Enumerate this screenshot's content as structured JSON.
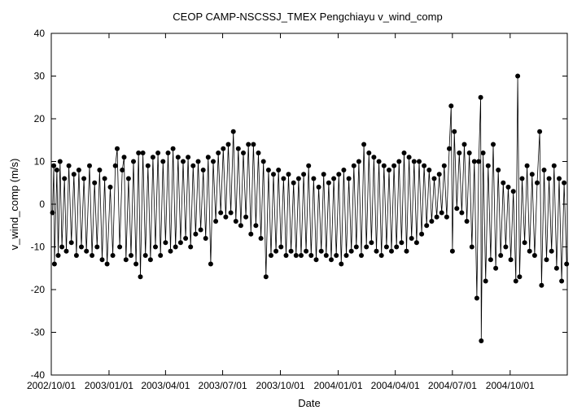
{
  "chart_data": {
    "type": "scatter",
    "title": "CEOP CAMP-NSCSSJ_TMEX Pengchiayu  v_wind_comp",
    "xlabel": "Date",
    "ylabel": "v_wind_comp (m/s)",
    "xlim": [
      "2002-10-01",
      "2004-12-31"
    ],
    "ylim": [
      -40,
      40
    ],
    "y_ticks": [
      -40,
      -30,
      -20,
      -10,
      0,
      10,
      20,
      30,
      40
    ],
    "x_ticks": [
      {
        "date": "2002-10-01",
        "label": "2002/10/01"
      },
      {
        "date": "2003-01-01",
        "label": "2003/01/01"
      },
      {
        "date": "2003-04-01",
        "label": "2003/04/01"
      },
      {
        "date": "2003-07-01",
        "label": "2003/07/01"
      },
      {
        "date": "2003-10-01",
        "label": "2003/10/01"
      },
      {
        "date": "2004-01-01",
        "label": "2004/01/01"
      },
      {
        "date": "2004-04-01",
        "label": "2004/04/01"
      },
      {
        "date": "2004-07-01",
        "label": "2004/07/01"
      },
      {
        "date": "2004-10-01",
        "label": "2004/10/01"
      }
    ],
    "grid": false,
    "series": [
      {
        "color": "#000000",
        "points": [
          [
            "2002-10-03",
            -2
          ],
          [
            "2002-10-05",
            9
          ],
          [
            "2002-10-06",
            -14
          ],
          [
            "2002-10-10",
            8
          ],
          [
            "2002-10-12",
            -12
          ],
          [
            "2002-10-15",
            10
          ],
          [
            "2002-10-18",
            -10
          ],
          [
            "2002-10-22",
            6
          ],
          [
            "2002-10-25",
            -11
          ],
          [
            "2002-10-29",
            9
          ],
          [
            "2002-11-02",
            -9
          ],
          [
            "2002-11-06",
            7
          ],
          [
            "2002-11-10",
            -12
          ],
          [
            "2002-11-14",
            8
          ],
          [
            "2002-11-18",
            -10
          ],
          [
            "2002-11-22",
            6
          ],
          [
            "2002-11-26",
            -11
          ],
          [
            "2002-12-01",
            9
          ],
          [
            "2002-12-05",
            -12
          ],
          [
            "2002-12-09",
            5
          ],
          [
            "2002-12-13",
            -10
          ],
          [
            "2002-12-17",
            8
          ],
          [
            "2002-12-21",
            -13
          ],
          [
            "2002-12-25",
            6
          ],
          [
            "2002-12-29",
            -14
          ],
          [
            "2003-01-03",
            4
          ],
          [
            "2003-01-07",
            -12
          ],
          [
            "2003-01-11",
            9
          ],
          [
            "2003-01-14",
            13
          ],
          [
            "2003-01-18",
            -10
          ],
          [
            "2003-01-22",
            8
          ],
          [
            "2003-01-25",
            11
          ],
          [
            "2003-01-28",
            -13
          ],
          [
            "2003-02-01",
            6
          ],
          [
            "2003-02-05",
            -12
          ],
          [
            "2003-02-09",
            10
          ],
          [
            "2003-02-13",
            -14
          ],
          [
            "2003-02-17",
            12
          ],
          [
            "2003-02-20",
            -17
          ],
          [
            "2003-02-24",
            12
          ],
          [
            "2003-02-28",
            -12
          ],
          [
            "2003-03-04",
            9
          ],
          [
            "2003-03-08",
            -13
          ],
          [
            "2003-03-12",
            11
          ],
          [
            "2003-03-16",
            -10
          ],
          [
            "2003-03-20",
            12
          ],
          [
            "2003-03-24",
            -12
          ],
          [
            "2003-03-28",
            10
          ],
          [
            "2003-04-01",
            -9
          ],
          [
            "2003-04-05",
            12
          ],
          [
            "2003-04-09",
            -11
          ],
          [
            "2003-04-13",
            13
          ],
          [
            "2003-04-17",
            -10
          ],
          [
            "2003-04-21",
            11
          ],
          [
            "2003-04-25",
            -9
          ],
          [
            "2003-04-29",
            10
          ],
          [
            "2003-05-03",
            -8
          ],
          [
            "2003-05-07",
            11
          ],
          [
            "2003-05-11",
            -10
          ],
          [
            "2003-05-15",
            9
          ],
          [
            "2003-05-19",
            -7
          ],
          [
            "2003-05-23",
            10
          ],
          [
            "2003-05-27",
            -6
          ],
          [
            "2003-05-31",
            8
          ],
          [
            "2003-06-04",
            -8
          ],
          [
            "2003-06-08",
            11
          ],
          [
            "2003-06-12",
            -14
          ],
          [
            "2003-06-16",
            10
          ],
          [
            "2003-06-20",
            -4
          ],
          [
            "2003-06-24",
            12
          ],
          [
            "2003-06-28",
            -2
          ],
          [
            "2003-07-02",
            13
          ],
          [
            "2003-07-06",
            -3
          ],
          [
            "2003-07-10",
            14
          ],
          [
            "2003-07-14",
            -2
          ],
          [
            "2003-07-18",
            17
          ],
          [
            "2003-07-22",
            -4
          ],
          [
            "2003-07-26",
            13
          ],
          [
            "2003-07-30",
            -5
          ],
          [
            "2003-08-03",
            12
          ],
          [
            "2003-08-07",
            -3
          ],
          [
            "2003-08-11",
            14
          ],
          [
            "2003-08-15",
            -7
          ],
          [
            "2003-08-19",
            14
          ],
          [
            "2003-08-23",
            -5
          ],
          [
            "2003-08-27",
            12
          ],
          [
            "2003-08-31",
            -8
          ],
          [
            "2003-09-04",
            10
          ],
          [
            "2003-09-08",
            -17
          ],
          [
            "2003-09-12",
            8
          ],
          [
            "2003-09-16",
            -12
          ],
          [
            "2003-09-20",
            7
          ],
          [
            "2003-09-24",
            -11
          ],
          [
            "2003-09-28",
            8
          ],
          [
            "2003-10-02",
            -10
          ],
          [
            "2003-10-06",
            6
          ],
          [
            "2003-10-10",
            -12
          ],
          [
            "2003-10-14",
            7
          ],
          [
            "2003-10-18",
            -11
          ],
          [
            "2003-10-22",
            5
          ],
          [
            "2003-10-26",
            -12
          ],
          [
            "2003-10-30",
            6
          ],
          [
            "2003-11-03",
            -12
          ],
          [
            "2003-11-07",
            7
          ],
          [
            "2003-11-11",
            -11
          ],
          [
            "2003-11-15",
            9
          ],
          [
            "2003-11-19",
            -12
          ],
          [
            "2003-11-23",
            6
          ],
          [
            "2003-11-27",
            -13
          ],
          [
            "2003-12-01",
            4
          ],
          [
            "2003-12-05",
            -11
          ],
          [
            "2003-12-09",
            7
          ],
          [
            "2003-12-13",
            -12
          ],
          [
            "2003-12-17",
            5
          ],
          [
            "2003-12-21",
            -13
          ],
          [
            "2003-12-25",
            6
          ],
          [
            "2003-12-29",
            -12
          ],
          [
            "2004-01-02",
            7
          ],
          [
            "2004-01-06",
            -14
          ],
          [
            "2004-01-10",
            8
          ],
          [
            "2004-01-14",
            -12
          ],
          [
            "2004-01-18",
            6
          ],
          [
            "2004-01-22",
            -11
          ],
          [
            "2004-01-26",
            9
          ],
          [
            "2004-01-30",
            -10
          ],
          [
            "2004-02-03",
            10
          ],
          [
            "2004-02-07",
            -12
          ],
          [
            "2004-02-11",
            14
          ],
          [
            "2004-02-15",
            -10
          ],
          [
            "2004-02-19",
            12
          ],
          [
            "2004-02-23",
            -9
          ],
          [
            "2004-02-27",
            11
          ],
          [
            "2004-03-02",
            -11
          ],
          [
            "2004-03-06",
            10
          ],
          [
            "2004-03-10",
            -12
          ],
          [
            "2004-03-14",
            9
          ],
          [
            "2004-03-18",
            -10
          ],
          [
            "2004-03-22",
            8
          ],
          [
            "2004-03-26",
            -11
          ],
          [
            "2004-03-30",
            9
          ],
          [
            "2004-04-03",
            -10
          ],
          [
            "2004-04-07",
            10
          ],
          [
            "2004-04-11",
            -9
          ],
          [
            "2004-04-15",
            12
          ],
          [
            "2004-04-19",
            -11
          ],
          [
            "2004-04-23",
            11
          ],
          [
            "2004-04-27",
            -8
          ],
          [
            "2004-05-01",
            10
          ],
          [
            "2004-05-05",
            -9
          ],
          [
            "2004-05-09",
            10
          ],
          [
            "2004-05-13",
            -7
          ],
          [
            "2004-05-17",
            9
          ],
          [
            "2004-05-21",
            -5
          ],
          [
            "2004-05-25",
            8
          ],
          [
            "2004-05-29",
            -4
          ],
          [
            "2004-06-02",
            6
          ],
          [
            "2004-06-06",
            -3
          ],
          [
            "2004-06-10",
            7
          ],
          [
            "2004-06-14",
            -2
          ],
          [
            "2004-06-18",
            9
          ],
          [
            "2004-06-22",
            -3
          ],
          [
            "2004-06-26",
            13
          ],
          [
            "2004-06-29",
            23
          ],
          [
            "2004-07-01",
            -11
          ],
          [
            "2004-07-04",
            17
          ],
          [
            "2004-07-08",
            -1
          ],
          [
            "2004-07-12",
            12
          ],
          [
            "2004-07-16",
            -2
          ],
          [
            "2004-07-20",
            14
          ],
          [
            "2004-07-24",
            -4
          ],
          [
            "2004-07-28",
            12
          ],
          [
            "2004-08-01",
            -10
          ],
          [
            "2004-08-05",
            10
          ],
          [
            "2004-08-09",
            -22
          ],
          [
            "2004-08-12",
            10
          ],
          [
            "2004-08-15",
            25
          ],
          [
            "2004-08-16",
            -32
          ],
          [
            "2004-08-19",
            12
          ],
          [
            "2004-08-23",
            -18
          ],
          [
            "2004-08-27",
            9
          ],
          [
            "2004-08-31",
            -13
          ],
          [
            "2004-09-04",
            14
          ],
          [
            "2004-09-08",
            -15
          ],
          [
            "2004-09-12",
            8
          ],
          [
            "2004-09-16",
            -12
          ],
          [
            "2004-09-20",
            5
          ],
          [
            "2004-09-24",
            -10
          ],
          [
            "2004-09-28",
            4
          ],
          [
            "2004-10-02",
            -13
          ],
          [
            "2004-10-06",
            3
          ],
          [
            "2004-10-10",
            -18
          ],
          [
            "2004-10-13",
            30
          ],
          [
            "2004-10-16",
            -17
          ],
          [
            "2004-10-20",
            6
          ],
          [
            "2004-10-24",
            -9
          ],
          [
            "2004-10-28",
            9
          ],
          [
            "2004-11-01",
            -11
          ],
          [
            "2004-11-05",
            7
          ],
          [
            "2004-11-09",
            -12
          ],
          [
            "2004-11-13",
            5
          ],
          [
            "2004-11-17",
            17
          ],
          [
            "2004-11-20",
            -19
          ],
          [
            "2004-11-24",
            8
          ],
          [
            "2004-11-28",
            -13
          ],
          [
            "2004-12-02",
            6
          ],
          [
            "2004-12-06",
            -11
          ],
          [
            "2004-12-10",
            9
          ],
          [
            "2004-12-14",
            -15
          ],
          [
            "2004-12-18",
            6
          ],
          [
            "2004-12-22",
            -18
          ],
          [
            "2004-12-26",
            5
          ],
          [
            "2004-12-30",
            -14
          ]
        ]
      }
    ]
  }
}
